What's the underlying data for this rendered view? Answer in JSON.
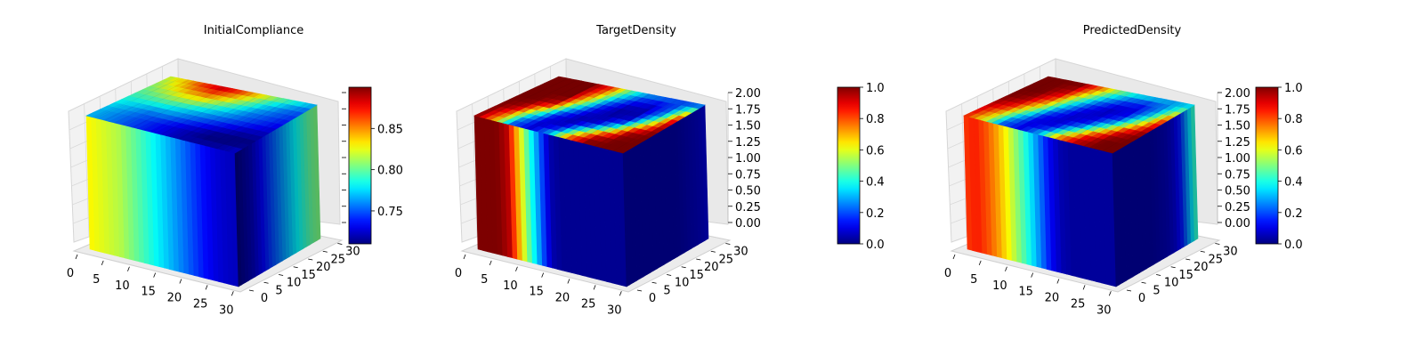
{
  "chart_data": [
    {
      "type": "voxel-3d",
      "title": "InitialCompliance",
      "x_ticks": [
        "0",
        "5",
        "10",
        "15",
        "20",
        "25",
        "30"
      ],
      "y_ticks": [
        "0",
        "5",
        "10",
        "15",
        "20",
        "25",
        "30"
      ],
      "z_ticks": [],
      "colorbar": {
        "ticks": [
          "0.75",
          "0.80",
          "0.85"
        ],
        "range": [
          0.71,
          0.9
        ]
      },
      "colormap": "jet",
      "front_face_profile": [
        0.83,
        0.825,
        0.82,
        0.815,
        0.805,
        0.795,
        0.785,
        0.775,
        0.765,
        0.755,
        0.745,
        0.735,
        0.728,
        0.724,
        0.722
      ],
      "right_face_profile": [
        0.71,
        0.715,
        0.72,
        0.73,
        0.74,
        0.75,
        0.76,
        0.77,
        0.78,
        0.79,
        0.8,
        0.805
      ],
      "top_face_grid": [
        [
          0.82,
          0.84,
          0.87,
          0.89,
          0.87,
          0.84,
          0.81,
          0.79,
          0.77
        ],
        [
          0.81,
          0.83,
          0.85,
          0.86,
          0.84,
          0.81,
          0.78,
          0.76,
          0.75
        ],
        [
          0.8,
          0.81,
          0.82,
          0.82,
          0.8,
          0.78,
          0.76,
          0.75,
          0.74
        ],
        [
          0.79,
          0.79,
          0.79,
          0.78,
          0.77,
          0.76,
          0.75,
          0.74,
          0.73
        ],
        [
          0.78,
          0.77,
          0.76,
          0.76,
          0.75,
          0.74,
          0.73,
          0.72,
          0.72
        ],
        [
          0.77,
          0.76,
          0.75,
          0.74,
          0.73,
          0.72,
          0.71,
          0.71,
          0.71
        ],
        [
          0.77,
          0.76,
          0.75,
          0.74,
          0.73,
          0.72,
          0.72,
          0.72,
          0.73
        ]
      ]
    },
    {
      "type": "voxel-3d",
      "title": "TargetDensity",
      "x_ticks": [
        "0",
        "5",
        "10",
        "15",
        "20",
        "25",
        "30"
      ],
      "y_ticks": [
        "0",
        "5",
        "10",
        "15",
        "20",
        "25",
        "30"
      ],
      "z_ticks": [
        "0.00",
        "0.25",
        "0.50",
        "0.75",
        "1.00",
        "1.25",
        "1.50",
        "1.75",
        "2.00"
      ],
      "colorbar": {
        "ticks": [
          "0.0",
          "0.2",
          "0.4",
          "0.6",
          "0.8",
          "1.0"
        ],
        "range": [
          0,
          1
        ]
      },
      "colormap": "jet",
      "front_face_profile": [
        1,
        1,
        1,
        0.95,
        0.7,
        0.45,
        0.25,
        0.05,
        0.02,
        0.02,
        0.02,
        0.02,
        0.02,
        0.02,
        0.02
      ],
      "right_face_profile": [
        0.03,
        0.03,
        0.03,
        0.03,
        0.03,
        0.03,
        0.03,
        0.03,
        0.04,
        0.05,
        0.06,
        0.08
      ],
      "top_face_grid": [
        [
          1,
          1,
          1,
          0.85,
          0.5,
          0.3,
          0.25,
          0.2,
          0.15
        ],
        [
          1,
          1,
          1,
          0.75,
          0.35,
          0.15,
          0.1,
          0.2,
          0.6
        ],
        [
          1,
          1,
          1,
          0.6,
          0.2,
          0.05,
          0.05,
          0.3,
          0.95
        ],
        [
          1,
          1,
          0.9,
          0.35,
          0.1,
          0.05,
          0.1,
          0.6,
          1
        ],
        [
          1,
          0.95,
          0.55,
          0.15,
          0.05,
          0.1,
          0.45,
          0.95,
          1
        ],
        [
          1,
          0.8,
          0.3,
          0.08,
          0.1,
          0.5,
          0.9,
          1,
          1
        ],
        [
          1,
          0.7,
          0.2,
          0.1,
          0.35,
          0.85,
          1,
          1,
          1
        ]
      ]
    },
    {
      "type": "voxel-3d",
      "title": "PredictedDensity",
      "x_ticks": [
        "0",
        "5",
        "10",
        "15",
        "20",
        "25",
        "30"
      ],
      "y_ticks": [
        "0",
        "5",
        "10",
        "15",
        "20",
        "25",
        "30"
      ],
      "z_ticks": [
        "0.00",
        "0.25",
        "0.50",
        "0.75",
        "1.00",
        "1.25",
        "1.50",
        "1.75",
        "2.00"
      ],
      "colorbar": {
        "ticks": [
          "0.0",
          "0.2",
          "0.4",
          "0.6",
          "0.8",
          "1.0"
        ],
        "range": [
          0,
          1
        ]
      },
      "colormap": "jet",
      "front_face_profile": [
        0.82,
        0.85,
        0.8,
        0.72,
        0.62,
        0.5,
        0.38,
        0.25,
        0.12,
        0.05,
        0.03,
        0.03,
        0.03,
        0.03,
        0.03
      ],
      "right_face_profile": [
        0.03,
        0.03,
        0.03,
        0.03,
        0.03,
        0.03,
        0.04,
        0.05,
        0.08,
        0.15,
        0.3,
        0.45
      ],
      "top_face_grid": [
        [
          1,
          1,
          1,
          0.8,
          0.55,
          0.4,
          0.35,
          0.3,
          0.3
        ],
        [
          1,
          1,
          0.95,
          0.65,
          0.35,
          0.2,
          0.15,
          0.25,
          0.55
        ],
        [
          1,
          1,
          0.85,
          0.45,
          0.2,
          0.08,
          0.1,
          0.35,
          0.85
        ],
        [
          1,
          0.95,
          0.7,
          0.3,
          0.1,
          0.08,
          0.2,
          0.6,
          0.95
        ],
        [
          0.95,
          0.85,
          0.5,
          0.15,
          0.08,
          0.15,
          0.5,
          0.9,
          1
        ],
        [
          0.9,
          0.7,
          0.3,
          0.1,
          0.12,
          0.45,
          0.85,
          1,
          1
        ],
        [
          0.85,
          0.6,
          0.2,
          0.12,
          0.35,
          0.8,
          0.95,
          1,
          1
        ]
      ]
    }
  ]
}
